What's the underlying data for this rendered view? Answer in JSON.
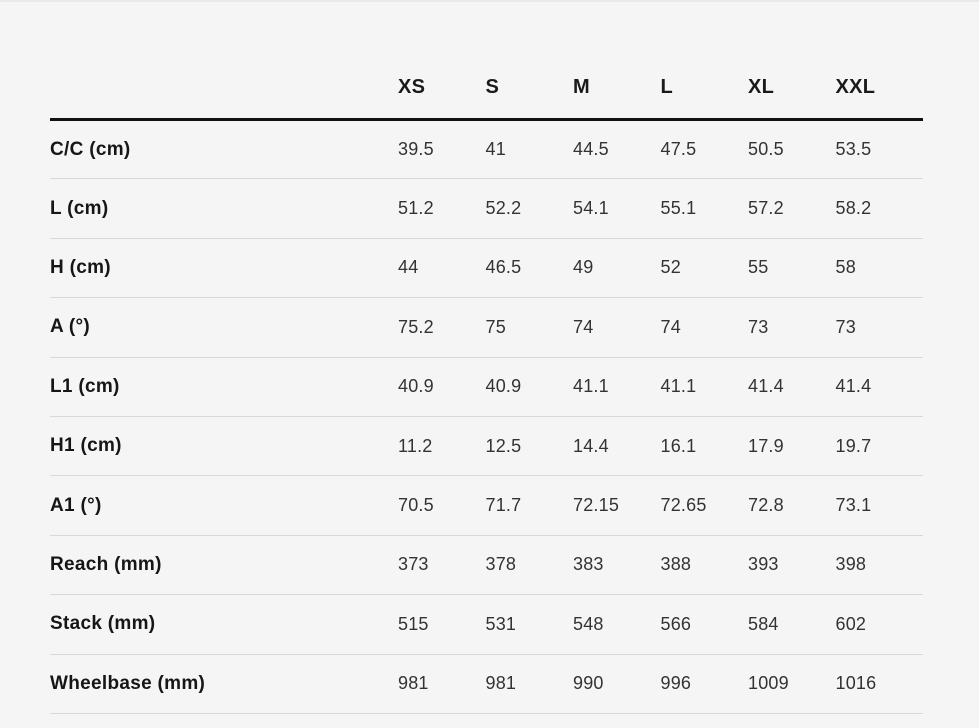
{
  "colors": {
    "background": "#f5f5f5",
    "header_rule": "#111111",
    "row_rule": "#d8d8d8",
    "label_text": "#161616",
    "value_text": "#333333"
  },
  "chart_data": {
    "type": "table",
    "columns": [
      "XS",
      "S",
      "M",
      "L",
      "XL",
      "XXL"
    ],
    "rows": [
      {
        "label": "C/C (cm)",
        "values": [
          "39.5",
          "41",
          "44.5",
          "47.5",
          "50.5",
          "53.5"
        ]
      },
      {
        "label": "L (cm)",
        "values": [
          "51.2",
          "52.2",
          "54.1",
          "55.1",
          "57.2",
          "58.2"
        ]
      },
      {
        "label": "H (cm)",
        "values": [
          "44",
          "46.5",
          "49",
          "52",
          "55",
          "58"
        ]
      },
      {
        "label": "A (°)",
        "values": [
          "75.2",
          "75",
          "74",
          "74",
          "73",
          "73"
        ]
      },
      {
        "label": "L1 (cm)",
        "values": [
          "40.9",
          "40.9",
          "41.1",
          "41.1",
          "41.4",
          "41.4"
        ]
      },
      {
        "label": "H1 (cm)",
        "values": [
          "11.2",
          "12.5",
          "14.4",
          "16.1",
          "17.9",
          "19.7"
        ]
      },
      {
        "label": "A1 (°)",
        "values": [
          "70.5",
          "71.7",
          "72.15",
          "72.65",
          "72.8",
          "73.1"
        ]
      },
      {
        "label": "Reach (mm)",
        "values": [
          "373",
          "378",
          "383",
          "388",
          "393",
          "398"
        ]
      },
      {
        "label": "Stack (mm)",
        "values": [
          "515",
          "531",
          "548",
          "566",
          "584",
          "602"
        ]
      },
      {
        "label": "Wheelbase (mm)",
        "values": [
          "981",
          "981",
          "990",
          "996",
          "1009",
          "1016"
        ]
      }
    ]
  }
}
